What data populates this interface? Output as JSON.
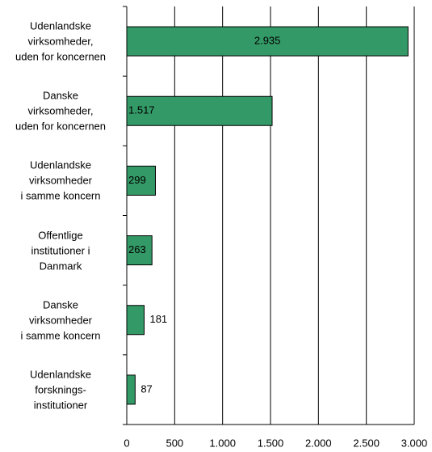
{
  "chart_data": {
    "type": "hbar",
    "categories": [
      "Udenlandske\nvirksomheder,\nuden for koncernen",
      "Danske\nvirksomheder,\nuden for koncernen",
      "Udenlandske\nvirksomheder\ni samme koncern",
      "Offentlige\ninstitutioner i\nDanmark",
      "Danske\nvirksomheder\ni samme koncern",
      "Udenlandske\nforsknings-\ninstitutioner"
    ],
    "values": [
      2935,
      1517,
      299,
      263,
      181,
      87
    ],
    "value_labels": [
      "2.935",
      "1.517",
      "299",
      "263",
      "181",
      "87"
    ],
    "color": "#339966",
    "xlim": [
      0,
      3000
    ],
    "xticks": [
      0,
      500,
      {
        "value": 1000,
        "label": "1.000"
      },
      {
        "value": 1500,
        "label": "1.500"
      },
      {
        "value": 2000,
        "label": "2.000"
      },
      {
        "value": 2500,
        "label": "2.500"
      },
      {
        "value": 3000,
        "label": "3.000"
      }
    ],
    "grid": true
  }
}
